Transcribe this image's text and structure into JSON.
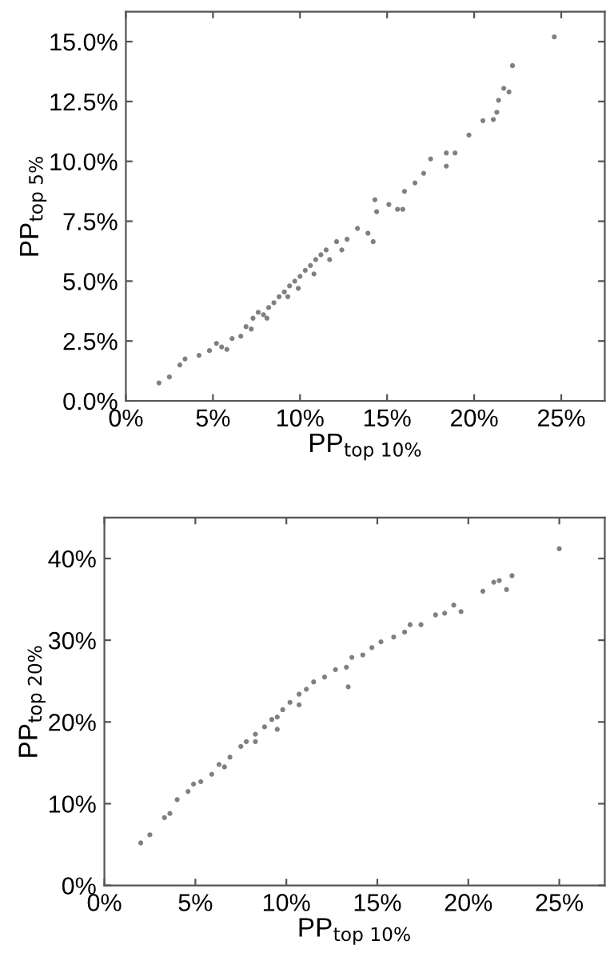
{
  "chart_data": [
    {
      "type": "scatter",
      "xlabel": "PP$_{top 10%}$",
      "ylabel": "PP$_{top 5%}$",
      "marker": "circle",
      "grid": false,
      "legend": false,
      "xlim": [
        0,
        27.5
      ],
      "ylim": [
        0,
        16.25
      ],
      "xticks": [
        {
          "value": 0,
          "label": "0%"
        },
        {
          "value": 5,
          "label": "5%"
        },
        {
          "value": 10,
          "label": "10%"
        },
        {
          "value": 15,
          "label": "15%"
        },
        {
          "value": 20,
          "label": "20%"
        },
        {
          "value": 25,
          "label": "25%"
        }
      ],
      "yticks": [
        {
          "value": 0,
          "label": "0.0%"
        },
        {
          "value": 2.5,
          "label": "2.5%"
        },
        {
          "value": 5,
          "label": "5.0%"
        },
        {
          "value": 7.5,
          "label": "7.5%"
        },
        {
          "value": 10,
          "label": "10.0%"
        },
        {
          "value": 12.5,
          "label": "12.5%"
        },
        {
          "value": 15,
          "label": "15.0%"
        }
      ],
      "series": [
        {
          "color": "#808080",
          "x": [
            1.9,
            2.5,
            3.1,
            3.4,
            4.2,
            4.8,
            5.2,
            5.5,
            6.1,
            6.6,
            6.9,
            7.3,
            7.6,
            7.9,
            8.2,
            8.5,
            8.8,
            9.1,
            9.4,
            9.7,
            10.0,
            10.3,
            10.6,
            10.9,
            11.2,
            11.5,
            12.1,
            12.7,
            13.3,
            13.9,
            14.4,
            14.3,
            15.1,
            15.9,
            16.0,
            16.6,
            17.1,
            17.5,
            18.4,
            18.4,
            18.9,
            19.7,
            20.5,
            21.1,
            21.3,
            21.4,
            21.7,
            22.0,
            22.2,
            24.6,
            9.9,
            10.8,
            11.7,
            9.3,
            8.1,
            7.2,
            5.8,
            12.4,
            14.2,
            15.6
          ],
          "values": [
            0.75,
            1.0,
            1.5,
            1.75,
            1.9,
            2.1,
            2.4,
            2.25,
            2.6,
            2.7,
            3.1,
            3.45,
            3.7,
            3.6,
            3.9,
            4.1,
            4.35,
            4.55,
            4.8,
            5.0,
            5.2,
            5.45,
            5.65,
            5.9,
            6.1,
            6.3,
            6.65,
            6.75,
            7.2,
            7.0,
            7.9,
            8.4,
            8.2,
            8.0,
            8.75,
            9.1,
            9.5,
            10.1,
            9.8,
            10.35,
            10.35,
            11.1,
            11.7,
            11.75,
            12.05,
            12.55,
            13.05,
            12.9,
            14.0,
            15.2,
            4.7,
            5.3,
            5.9,
            4.35,
            3.45,
            3.0,
            2.15,
            6.3,
            6.65,
            8.0
          ]
        }
      ]
    },
    {
      "type": "scatter",
      "xlabel": "PP$_{top 10%}$",
      "ylabel": "PP$_{top 20%}$",
      "marker": "circle",
      "grid": false,
      "legend": false,
      "xlim": [
        0,
        27.5
      ],
      "ylim": [
        0,
        45
      ],
      "xticks": [
        {
          "value": 0,
          "label": "0%"
        },
        {
          "value": 5,
          "label": "5%"
        },
        {
          "value": 10,
          "label": "10%"
        },
        {
          "value": 15,
          "label": "15%"
        },
        {
          "value": 20,
          "label": "20%"
        },
        {
          "value": 25,
          "label": "25%"
        }
      ],
      "yticks": [
        {
          "value": 0,
          "label": "0%"
        },
        {
          "value": 10,
          "label": "10%"
        },
        {
          "value": 20,
          "label": "20%"
        },
        {
          "value": 30,
          "label": "30%"
        },
        {
          "value": 40,
          "label": "40%"
        }
      ],
      "series": [
        {
          "color": "#808080",
          "x": [
            2.0,
            2.5,
            3.3,
            3.6,
            4.0,
            4.6,
            4.9,
            5.3,
            5.9,
            6.3,
            6.9,
            7.5,
            7.8,
            8.3,
            8.8,
            9.2,
            9.5,
            9.8,
            10.2,
            10.7,
            11.1,
            11.5,
            12.1,
            12.7,
            13.3,
            13.6,
            14.2,
            14.7,
            15.2,
            15.9,
            16.5,
            16.8,
            17.4,
            18.2,
            18.7,
            19.2,
            19.6,
            20.8,
            21.4,
            21.7,
            22.1,
            22.4,
            25.0,
            9.5,
            8.3,
            10.7,
            13.4,
            6.6
          ],
          "values": [
            5.2,
            6.2,
            8.3,
            8.8,
            10.5,
            11.5,
            12.4,
            12.7,
            13.6,
            14.8,
            15.7,
            17.0,
            17.6,
            18.5,
            19.4,
            20.3,
            20.6,
            21.5,
            22.4,
            23.4,
            24.0,
            24.9,
            25.5,
            26.4,
            26.7,
            27.9,
            28.2,
            29.1,
            29.8,
            30.4,
            31.0,
            31.9,
            31.9,
            33.1,
            33.3,
            34.3,
            33.5,
            36.0,
            37.1,
            37.3,
            36.2,
            37.9,
            41.2,
            19.1,
            17.6,
            22.1,
            24.3,
            14.5
          ]
        }
      ]
    }
  ]
}
